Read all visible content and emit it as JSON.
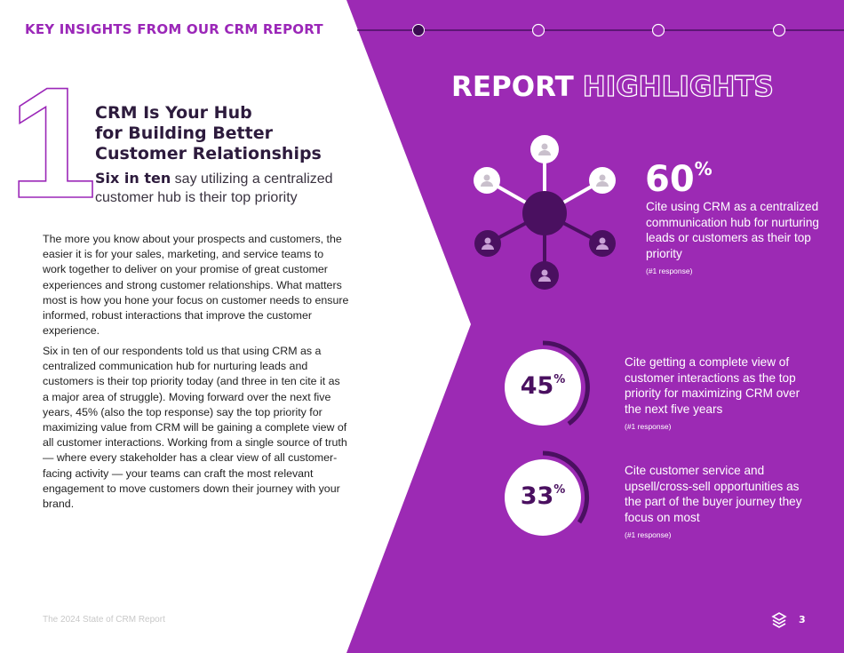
{
  "header": {
    "title": "KEY INSIGHTS FROM OUR CRM REPORT"
  },
  "section": {
    "number": "1",
    "heading": {
      "lines": [
        "CRM Is Your Hub",
        "for Building Better",
        "Customer Relationships"
      ]
    },
    "subheading": {
      "bold": "Six in ten",
      "rest": " say utilizing a centralized customer hub is their top priority"
    },
    "paragraphs": [
      "The more you know about your prospects and customers, the easier it is for your sales, marketing, and service teams to work together to deliver on your promise of great customer experiences and strong customer relationships. What matters most is how you hone your focus on customer needs to ensure informed, robust interactions that improve the customer experience.",
      "Six in ten of our respondents told us that using CRM as a centralized communication hub for nurturing leads and customers is their top priority today (and three in ten cite it as a major area of struggle). Moving forward over the next five years, 45% (also the top response) say the top priority for maximizing value from CRM will be gaining a complete view of all customer interactions. Working from a single source of truth — where every stakeholder has a clear view of all customer-facing activity — your teams can craft the most relevant engagement to move customers down their journey with your brand."
    ]
  },
  "highlights": {
    "title_solid": "REPORT",
    "title_outline": "HIGHLIGHTS",
    "stats": [
      {
        "value": "60",
        "unit": "%",
        "text": "Cite using CRM as a centralized communication hub for nurturing leads or customers as their top priority",
        "note": "(#1 response)"
      },
      {
        "value": "45",
        "unit": "%",
        "text": "Cite getting a complete view of customer interactions as the top priority for maximizing CRM over the next five years",
        "note": "(#1 response)"
      },
      {
        "value": "33",
        "unit": "%",
        "text": "Cite customer service and upsell/cross-sell opportunities as the part of the buyer journey they focus on most",
        "note": "(#1 response)"
      }
    ]
  },
  "footer": {
    "report_name": "The 2024 State of CRM Report",
    "page_number": "3"
  }
}
